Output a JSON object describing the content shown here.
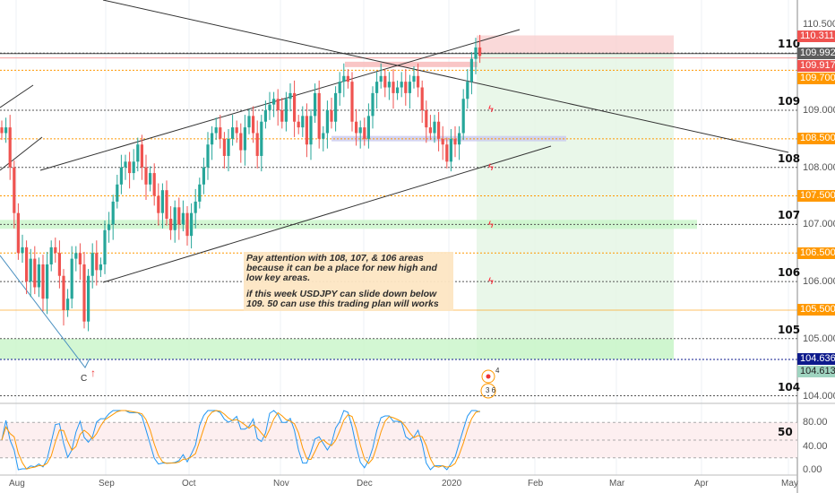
{
  "chart_data": {
    "type": "candlestick",
    "symbol": "USDJPY",
    "y_range": [
      103.7,
      110.6
    ],
    "x_ticks": [
      "Aug",
      "Sep",
      "Oct",
      "Nov",
      "Dec",
      "2020",
      "Feb",
      "Mar",
      "Apr",
      "May"
    ],
    "y_ticks": [
      "110.500",
      "109.000",
      "108.000",
      "107.000",
      "106.000",
      "105.000",
      "104.000"
    ],
    "closes": [
      108.6,
      108.7,
      108.0,
      107.2,
      106.5,
      106.6,
      106.0,
      106.4,
      105.9,
      106.3,
      105.7,
      106.3,
      106.6,
      106.5,
      106.1,
      105.5,
      105.7,
      106.4,
      106.5,
      106.3,
      105.3,
      106.1,
      106.5,
      106.2,
      106.3,
      106.9,
      107.0,
      107.4,
      107.7,
      108.0,
      108.1,
      107.9,
      108.1,
      108.4,
      108.0,
      107.7,
      107.9,
      107.5,
      107.2,
      107.6,
      107.1,
      106.9,
      107.3,
      107.0,
      107.2,
      106.8,
      107.2,
      107.4,
      107.7,
      108.0,
      108.4,
      108.6,
      108.7,
      108.5,
      108.2,
      108.5,
      108.7,
      108.6,
      108.3,
      108.7,
      108.9,
      108.6,
      108.2,
      108.8,
      109.0,
      109.1,
      109.2,
      109.0,
      108.8,
      109.2,
      109.3,
      108.8,
      108.7,
      108.9,
      108.4,
      108.9,
      109.3,
      108.5,
      108.6,
      109.0,
      108.8,
      109.3,
      109.5,
      109.6,
      109.5,
      108.8,
      108.6,
      108.7,
      108.5,
      108.9,
      109.3,
      109.5,
      109.6,
      109.4,
      109.5,
      109.3,
      109.4,
      109.5,
      109.3,
      109.5,
      109.6,
      109.4,
      109.0,
      108.7,
      108.6,
      108.8,
      108.5,
      108.4,
      108.1,
      108.5,
      108.4,
      108.6,
      109.2,
      109.5,
      109.9,
      110.1,
      109.95
    ],
    "levels_dotted": [
      110,
      109,
      108,
      107,
      106,
      105,
      104
    ],
    "level_labels": [
      "110",
      "109",
      "108",
      "107",
      "106",
      "105",
      "104"
    ],
    "orange_levels": [
      109.7,
      108.5,
      107.5,
      106.5,
      105.5
    ],
    "price_tags": [
      {
        "label": "110.311",
        "price": 110.311,
        "color": "#ef5350"
      },
      {
        "label": "109.992",
        "price": 109.992,
        "color": "#5d5d5d"
      },
      {
        "label": "109.917",
        "price": 109.917,
        "color": "#ef5350"
      },
      {
        "label": "109.700",
        "price": 109.7,
        "color": "#ff9800"
      },
      {
        "label": "108.500",
        "price": 108.5,
        "color": "#ff9800"
      },
      {
        "label": "107.500",
        "price": 107.5,
        "color": "#ff9800"
      },
      {
        "label": "106.500",
        "price": 106.5,
        "color": "#ff9800"
      },
      {
        "label": "105.500",
        "price": 105.5,
        "color": "#ff9800"
      },
      {
        "label": "104.636",
        "price": 104.636,
        "color": "#0d1a8c"
      },
      {
        "label": "104.613",
        "price": 104.613,
        "color": "#9fd4c0"
      }
    ],
    "oscillator": {
      "y_ticks": [
        "80.00",
        "40.00",
        "0.00"
      ],
      "mid_label": "50",
      "bands": [
        80,
        20
      ]
    },
    "wave_label": "C",
    "event_counts": [
      "4",
      "3",
      "6"
    ]
  },
  "note": {
    "line1": "Pay attention with 108, 107, & 106 areas because it can be a place for new high and low key areas.",
    "line2": "if this week USDJPY can slide down below 109. 50 can use this trading plan will works"
  },
  "colors": {
    "up": "#26a69a",
    "down": "#ef5350",
    "orange": "#ff9800",
    "green_zone": "#c8f5c8",
    "target_zone": "#e3f5e3",
    "stop_zone": "#f9d0d0"
  }
}
